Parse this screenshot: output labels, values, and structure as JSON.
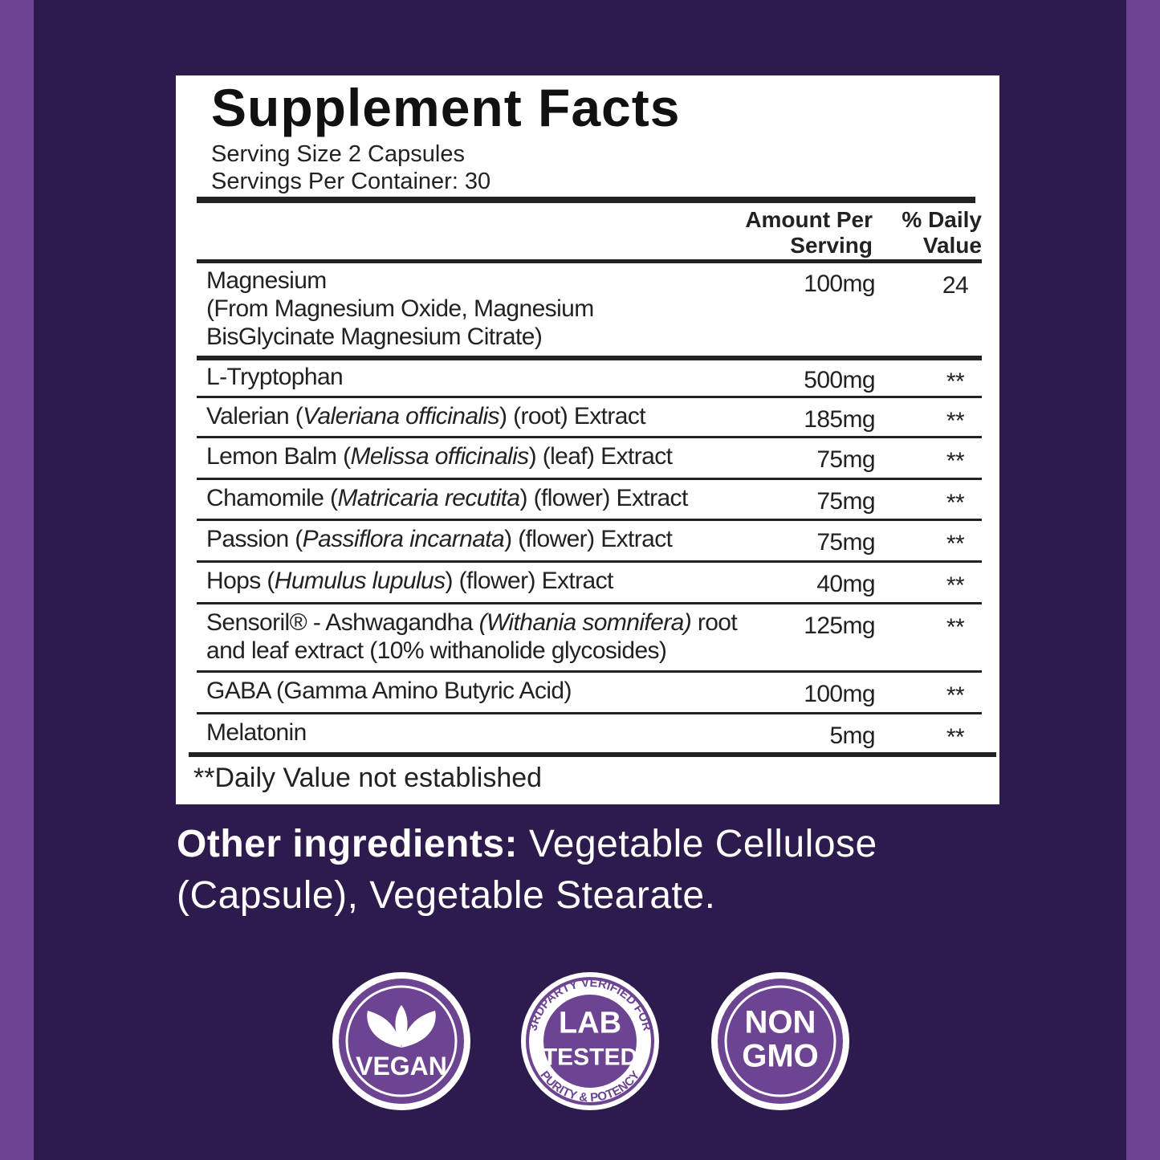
{
  "title": "Supplement Facts",
  "serving_size": "Serving Size 2 Capsules",
  "servings_per_container": "Servings Per Container: 30",
  "columns": {
    "amount": "Amount Per Serving",
    "daily_value": "% Daily Value"
  },
  "rows": [
    {
      "name": [
        "Magnesium"
      ],
      "note": "(From Magnesium Oxide, Magnesium BisGlycinate Magnesium Citrate)",
      "amount": "100mg",
      "daily_value": "24"
    },
    {
      "name": [
        "L-Tryptophan"
      ],
      "amount": "500mg",
      "daily_value": "**"
    },
    {
      "name": [
        "Valerian (",
        "Valeriana officinalis",
        ") (root) Extract"
      ],
      "amount": "185mg",
      "daily_value": "**"
    },
    {
      "name": [
        "Lemon Balm (",
        "Melissa officinalis",
        ") (leaf) Extract"
      ],
      "amount": "75mg",
      "daily_value": "**"
    },
    {
      "name": [
        "Chamomile (",
        "Matricaria recutita",
        ") (flower) Extract"
      ],
      "amount": "75mg",
      "daily_value": "**"
    },
    {
      "name": [
        "Passion (",
        "Passiflora incarnata",
        ") (flower) Extract"
      ],
      "amount": "75mg",
      "daily_value": "**"
    },
    {
      "name": [
        "Hops (",
        "Humulus lupulus",
        ") (flower) Extract"
      ],
      "amount": "40mg",
      "daily_value": "**"
    },
    {
      "name": [
        "Sensoril® - Ashwagandha ",
        "(Withania somnifera)",
        " root and leaf extract (10% withanolide glycosides)"
      ],
      "amount": "125mg",
      "daily_value": "**"
    },
    {
      "name": [
        "GABA (Gamma Amino Butyric Acid)"
      ],
      "amount": "100mg",
      "daily_value": "**"
    },
    {
      "name": [
        "Melatonin"
      ],
      "amount": "5mg",
      "daily_value": "**"
    }
  ],
  "footnote": "**Daily Value not established",
  "other_ingredients": {
    "label": "Other ingredients:",
    "text": "Vegetable Cellulose (Capsule), Vegetable Stearate."
  },
  "badges": [
    {
      "lines": [
        "VEGAN"
      ]
    },
    {
      "lines": [
        "LAB",
        "TESTED"
      ],
      "ring": [
        "3RDPARTY VERIFIED FOR",
        "PURITY & POTENCY"
      ]
    },
    {
      "lines": [
        "NON",
        "GMO"
      ]
    }
  ]
}
